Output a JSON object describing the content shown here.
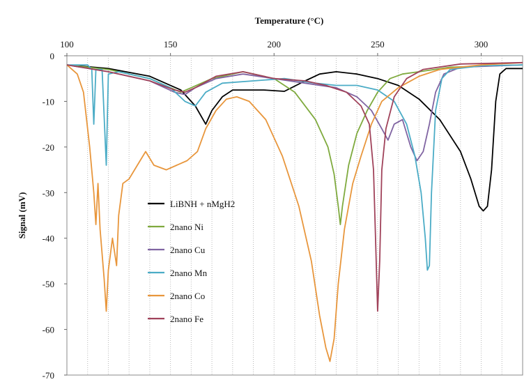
{
  "chart_data": {
    "type": "line",
    "xlabel": "Temperature (°C)",
    "ylabel": "Signal (mV)",
    "xlim": [
      100,
      320
    ],
    "ylim": [
      -70,
      0
    ],
    "x_ticks": [
      "100",
      "150",
      "200",
      "250",
      "300"
    ],
    "y_ticks": [
      "0",
      "-10",
      "-20",
      "-30",
      "-40",
      "-50",
      "-60",
      "-70"
    ],
    "x_axis_position": "top",
    "grid": "vertical dotted",
    "legend_position": "lower-left inside",
    "series": [
      {
        "name": "LiBNH + nMgH2",
        "color": "#000000",
        "points": [
          [
            100,
            -2
          ],
          [
            120,
            -2.8
          ],
          [
            140,
            -4.5
          ],
          [
            155,
            -7.5
          ],
          [
            162,
            -11
          ],
          [
            167,
            -15
          ],
          [
            170,
            -12
          ],
          [
            175,
            -9
          ],
          [
            180,
            -7.5
          ],
          [
            195,
            -7.5
          ],
          [
            205,
            -7.8
          ],
          [
            215,
            -5.5
          ],
          [
            222,
            -4
          ],
          [
            230,
            -3.5
          ],
          [
            240,
            -4
          ],
          [
            250,
            -5
          ],
          [
            260,
            -6.5
          ],
          [
            270,
            -9.5
          ],
          [
            280,
            -14
          ],
          [
            290,
            -21
          ],
          [
            295,
            -27
          ],
          [
            299,
            -33
          ],
          [
            301,
            -34
          ],
          [
            303,
            -33
          ],
          [
            305,
            -25
          ],
          [
            307,
            -10
          ],
          [
            309,
            -4
          ],
          [
            312,
            -2.8
          ],
          [
            320,
            -2.8
          ]
        ]
      },
      {
        "name": "2nano Ni",
        "color": "#7faa3e",
        "points": [
          [
            100,
            -2
          ],
          [
            120,
            -3
          ],
          [
            140,
            -5
          ],
          [
            150,
            -7
          ],
          [
            155,
            -8
          ],
          [
            160,
            -7
          ],
          [
            170,
            -5
          ],
          [
            185,
            -3.5
          ],
          [
            200,
            -5
          ],
          [
            210,
            -8
          ],
          [
            220,
            -14
          ],
          [
            226,
            -20
          ],
          [
            229,
            -26
          ],
          [
            231,
            -33
          ],
          [
            232,
            -37
          ],
          [
            233,
            -33
          ],
          [
            236,
            -24
          ],
          [
            240,
            -17
          ],
          [
            245,
            -12
          ],
          [
            250,
            -8
          ],
          [
            256,
            -5
          ],
          [
            262,
            -4
          ],
          [
            270,
            -3.5
          ],
          [
            285,
            -2.5
          ],
          [
            320,
            -2
          ]
        ]
      },
      {
        "name": "2nano Cu",
        "color": "#8064a2",
        "points": [
          [
            100,
            -2
          ],
          [
            120,
            -3.5
          ],
          [
            140,
            -5.5
          ],
          [
            152,
            -8
          ],
          [
            157,
            -8.5
          ],
          [
            162,
            -7
          ],
          [
            172,
            -5
          ],
          [
            185,
            -4
          ],
          [
            200,
            -5
          ],
          [
            215,
            -6
          ],
          [
            230,
            -7
          ],
          [
            240,
            -9
          ],
          [
            247,
            -12
          ],
          [
            252,
            -16
          ],
          [
            255,
            -18.5
          ],
          [
            258,
            -15
          ],
          [
            262,
            -14
          ],
          [
            266,
            -20
          ],
          [
            269,
            -23
          ],
          [
            272,
            -21
          ],
          [
            275,
            -15
          ],
          [
            278,
            -8
          ],
          [
            282,
            -4
          ],
          [
            290,
            -2.5
          ],
          [
            320,
            -2
          ]
        ]
      },
      {
        "name": "2nano Mn",
        "color": "#4bacc6",
        "points": [
          [
            100,
            -2
          ],
          [
            110,
            -2
          ],
          [
            112,
            -3
          ],
          [
            113,
            -15
          ],
          [
            114,
            -3
          ],
          [
            117,
            -3
          ],
          [
            119,
            -24
          ],
          [
            120,
            -4
          ],
          [
            125,
            -3.5
          ],
          [
            140,
            -5
          ],
          [
            150,
            -7
          ],
          [
            157,
            -10
          ],
          [
            162,
            -11
          ],
          [
            167,
            -8
          ],
          [
            175,
            -6
          ],
          [
            190,
            -5.5
          ],
          [
            205,
            -5
          ],
          [
            220,
            -6
          ],
          [
            230,
            -6.5
          ],
          [
            240,
            -6.5
          ],
          [
            250,
            -7.5
          ],
          [
            258,
            -10
          ],
          [
            264,
            -15
          ],
          [
            268,
            -22
          ],
          [
            271,
            -30
          ],
          [
            273,
            -40
          ],
          [
            274,
            -47
          ],
          [
            275,
            -46
          ],
          [
            276,
            -30
          ],
          [
            278,
            -12
          ],
          [
            281,
            -5
          ],
          [
            285,
            -3
          ],
          [
            300,
            -2.2
          ],
          [
            320,
            -2
          ]
        ]
      },
      {
        "name": "2nano Co",
        "color": "#e8963c",
        "points": [
          [
            100,
            -2
          ],
          [
            105,
            -4
          ],
          [
            108,
            -8
          ],
          [
            111,
            -20
          ],
          [
            113,
            -30
          ],
          [
            114,
            -37
          ],
          [
            115,
            -28
          ],
          [
            116,
            -38
          ],
          [
            118,
            -49
          ],
          [
            119,
            -56
          ],
          [
            120,
            -47
          ],
          [
            122,
            -40
          ],
          [
            124,
            -46
          ],
          [
            125,
            -35
          ],
          [
            127,
            -28
          ],
          [
            130,
            -27
          ],
          [
            134,
            -24
          ],
          [
            138,
            -21
          ],
          [
            142,
            -24
          ],
          [
            148,
            -25
          ],
          [
            153,
            -24
          ],
          [
            158,
            -23
          ],
          [
            163,
            -21
          ],
          [
            167,
            -16
          ],
          [
            172,
            -12
          ],
          [
            177,
            -9.5
          ],
          [
            182,
            -9
          ],
          [
            188,
            -10
          ],
          [
            196,
            -14
          ],
          [
            204,
            -22
          ],
          [
            212,
            -33
          ],
          [
            218,
            -45
          ],
          [
            222,
            -57
          ],
          [
            225,
            -64
          ],
          [
            227,
            -67
          ],
          [
            229,
            -62
          ],
          [
            231,
            -50
          ],
          [
            234,
            -38
          ],
          [
            238,
            -28
          ],
          [
            242,
            -22
          ],
          [
            247,
            -15
          ],
          [
            252,
            -10
          ],
          [
            260,
            -7
          ],
          [
            270,
            -4.5
          ],
          [
            280,
            -3
          ],
          [
            300,
            -2
          ],
          [
            320,
            -1.5
          ]
        ]
      },
      {
        "name": "2nano Fe",
        "color": "#a0425a",
        "points": [
          [
            100,
            -2
          ],
          [
            120,
            -3.5
          ],
          [
            140,
            -5.5
          ],
          [
            152,
            -7.5
          ],
          [
            157,
            -8
          ],
          [
            162,
            -7
          ],
          [
            172,
            -4.5
          ],
          [
            185,
            -3.5
          ],
          [
            200,
            -5
          ],
          [
            215,
            -5.5
          ],
          [
            225,
            -6.5
          ],
          [
            235,
            -8
          ],
          [
            242,
            -11
          ],
          [
            246,
            -15
          ],
          [
            248,
            -25
          ],
          [
            249,
            -40
          ],
          [
            250,
            -56
          ],
          [
            251,
            -45
          ],
          [
            252,
            -25
          ],
          [
            254,
            -16
          ],
          [
            258,
            -9
          ],
          [
            264,
            -5
          ],
          [
            272,
            -3
          ],
          [
            290,
            -1.8
          ],
          [
            320,
            -1.5
          ]
        ]
      }
    ]
  }
}
